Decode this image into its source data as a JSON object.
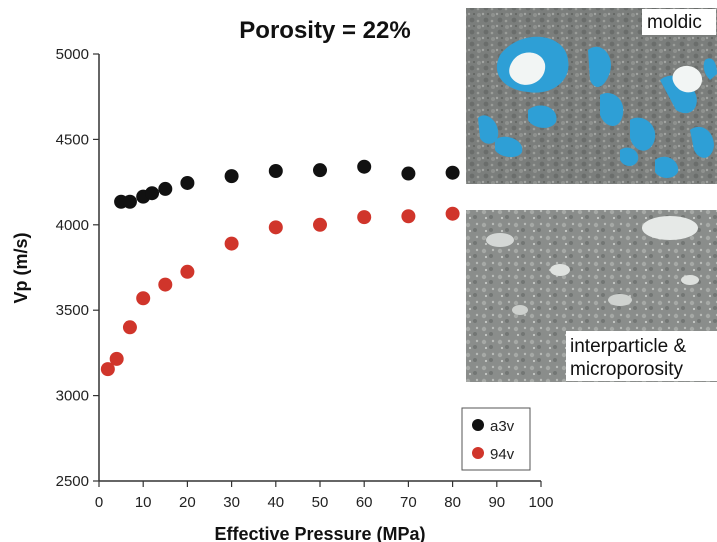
{
  "chart_data": {
    "type": "scatter",
    "title": "Porosity = 22%",
    "xlabel": "Effective Pressure (MPa)",
    "ylabel": "Vp (m/s)",
    "xlim": [
      0,
      100
    ],
    "ylim": [
      2500,
      5000
    ],
    "x_ticks": [
      "0",
      "10",
      "20",
      "30",
      "40",
      "50",
      "60",
      "70",
      "80",
      "90",
      "100"
    ],
    "y_ticks": [
      "2500",
      "3000",
      "3500",
      "4000",
      "4500",
      "5000"
    ],
    "grid": false,
    "legend_position": "bottom-right",
    "series": [
      {
        "name": "a3v",
        "color": "#111111",
        "points": [
          [
            5,
            4135
          ],
          [
            7,
            4135
          ],
          [
            10,
            4165
          ],
          [
            12,
            4185
          ],
          [
            15,
            4210
          ],
          [
            20,
            4245
          ],
          [
            30,
            4285
          ],
          [
            40,
            4315
          ],
          [
            50,
            4320
          ],
          [
            60,
            4340
          ],
          [
            70,
            4300
          ],
          [
            80,
            4305
          ]
        ]
      },
      {
        "name": "94v",
        "color": "#d0352b",
        "points": [
          [
            2,
            3155
          ],
          [
            4,
            3215
          ],
          [
            7,
            3400
          ],
          [
            10,
            3570
          ],
          [
            15,
            3650
          ],
          [
            20,
            3725
          ],
          [
            30,
            3890
          ],
          [
            40,
            3985
          ],
          [
            50,
            4000
          ],
          [
            60,
            4045
          ],
          [
            70,
            4050
          ],
          [
            80,
            4065
          ]
        ]
      }
    ]
  },
  "photos": {
    "top_label": "moldic",
    "bottom_label_line1": "interparticle &",
    "bottom_label_line2": "microporosity"
  }
}
